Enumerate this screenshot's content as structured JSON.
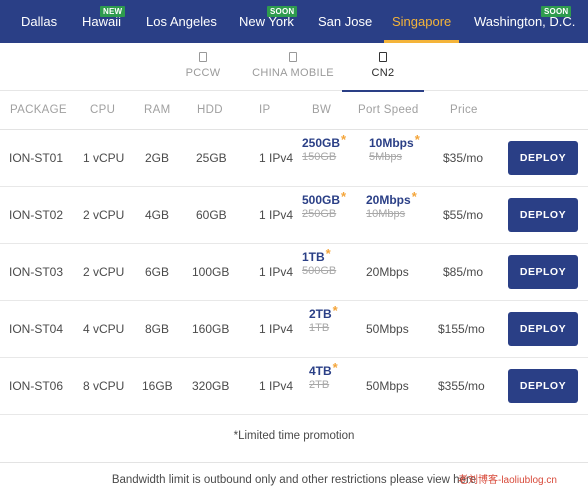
{
  "locations": [
    {
      "label": "Dallas",
      "badge": ""
    },
    {
      "label": "Hawaii",
      "badge": "NEW"
    },
    {
      "label": "Los Angeles",
      "badge": ""
    },
    {
      "label": "New York",
      "badge": "SOON"
    },
    {
      "label": "San Jose",
      "badge": ""
    },
    {
      "label": "Singapore",
      "badge": "",
      "active": true
    },
    {
      "label": "Washington, D.C.",
      "badge": "SOON"
    }
  ],
  "carriers": [
    {
      "label": "PCCW"
    },
    {
      "label": "CHINA MOBILE"
    },
    {
      "label": "CN2",
      "active": true
    }
  ],
  "table": {
    "headers": [
      "PACKAGE",
      "CPU",
      "RAM",
      "HDD",
      "IP",
      "BW",
      "Port Speed",
      "Price"
    ],
    "rows": [
      {
        "package": "ION-ST01",
        "cpu": "1 vCPU",
        "ram": "2GB",
        "hdd": "25GB",
        "ip": "1 IPv4",
        "bw": "250GB",
        "bw_star": "*",
        "bw_old": "150GB",
        "port": "10Mbps",
        "port_star": "*",
        "port_old": "5Mbps",
        "price": "$35/mo",
        "action": "DEPLOY"
      },
      {
        "package": "ION-ST02",
        "cpu": "2 vCPU",
        "ram": "4GB",
        "hdd": "60GB",
        "ip": "1 IPv4",
        "bw": "500GB",
        "bw_star": "*",
        "bw_old": "250GB",
        "port": "20Mbps",
        "port_star": "*",
        "port_old": "10Mbps",
        "price": "$55/mo",
        "action": "DEPLOY"
      },
      {
        "package": "ION-ST03",
        "cpu": "2 vCPU",
        "ram": "6GB",
        "hdd": "100GB",
        "ip": "1 IPv4",
        "bw": "1TB",
        "bw_star": "*",
        "bw_old": "500GB",
        "port": "20Mbps",
        "price": "$85/mo",
        "action": "DEPLOY"
      },
      {
        "package": "ION-ST04",
        "cpu": "4 vCPU",
        "ram": "8GB",
        "hdd": "160GB",
        "ip": "1 IPv4",
        "bw": "2TB",
        "bw_star": "*",
        "bw_old": "1TB",
        "port": "50Mbps",
        "price": "$155/mo",
        "action": "DEPLOY"
      },
      {
        "package": "ION-ST06",
        "cpu": "8 vCPU",
        "ram": "16GB",
        "hdd": "320GB",
        "ip": "1 IPv4",
        "bw": "4TB",
        "bw_star": "*",
        "bw_old": "2TB",
        "port": "50Mbps",
        "price": "$355/mo",
        "action": "DEPLOY"
      }
    ]
  },
  "note": "*Limited time promotion",
  "footer_text": "Bandwidth limit is outbound only and other restrictions please view here",
  "watermark": "老刘博客-laoliublog.cn",
  "colors": {
    "nav_bg": "#2a3f86",
    "accent": "#f4b43a",
    "badge_bg": "#2e9b4e",
    "star": "#f4a53a",
    "button_bg": "#2a3f86"
  }
}
